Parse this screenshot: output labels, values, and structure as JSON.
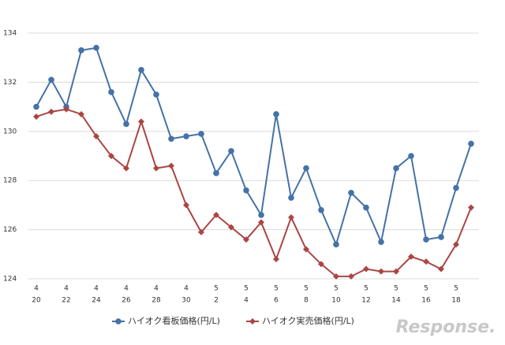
{
  "chart_data": {
    "type": "line",
    "categories": [
      [
        "4",
        "20"
      ],
      null,
      [
        "4",
        "22"
      ],
      null,
      [
        "4",
        "24"
      ],
      null,
      [
        "4",
        "26"
      ],
      null,
      [
        "4",
        "28"
      ],
      null,
      [
        "4",
        "30"
      ],
      null,
      [
        "5",
        "2"
      ],
      null,
      [
        "5",
        "4"
      ],
      null,
      [
        "5",
        "6"
      ],
      null,
      [
        "5",
        "8"
      ],
      null,
      [
        "5",
        "10"
      ],
      null,
      [
        "5",
        "12"
      ],
      null,
      [
        "5",
        "14"
      ],
      null,
      [
        "5",
        "16"
      ],
      null,
      [
        "5",
        "18"
      ],
      null
    ],
    "series": [
      {
        "name": "ハイオク看板価格(円/L)",
        "color": "#4572a7",
        "marker": "circle",
        "values": [
          131.0,
          132.1,
          131.0,
          133.3,
          133.4,
          131.6,
          130.3,
          132.5,
          131.5,
          129.7,
          129.8,
          129.9,
          128.3,
          129.2,
          127.6,
          126.6,
          130.7,
          127.3,
          128.5,
          126.8,
          125.4,
          127.5,
          126.9,
          125.5,
          128.5,
          129.0,
          125.6,
          125.7,
          127.7,
          129.5
        ]
      },
      {
        "name": "ハイオク実売価格(円/L)",
        "color": "#aa4643",
        "marker": "diamond",
        "values": [
          130.6,
          130.8,
          130.9,
          130.7,
          129.8,
          129.0,
          128.5,
          130.4,
          128.5,
          128.6,
          127.0,
          125.9,
          126.6,
          126.1,
          125.6,
          126.3,
          124.8,
          126.5,
          125.2,
          124.6,
          124.1,
          124.1,
          124.4,
          124.3,
          124.3,
          124.9,
          124.7,
          124.4,
          125.4,
          126.9
        ]
      }
    ],
    "ylim": [
      124,
      134
    ],
    "yticks": [
      124,
      126,
      128,
      130,
      132,
      134
    ],
    "grid": true,
    "legend": "bottom",
    "watermark": "Response."
  }
}
